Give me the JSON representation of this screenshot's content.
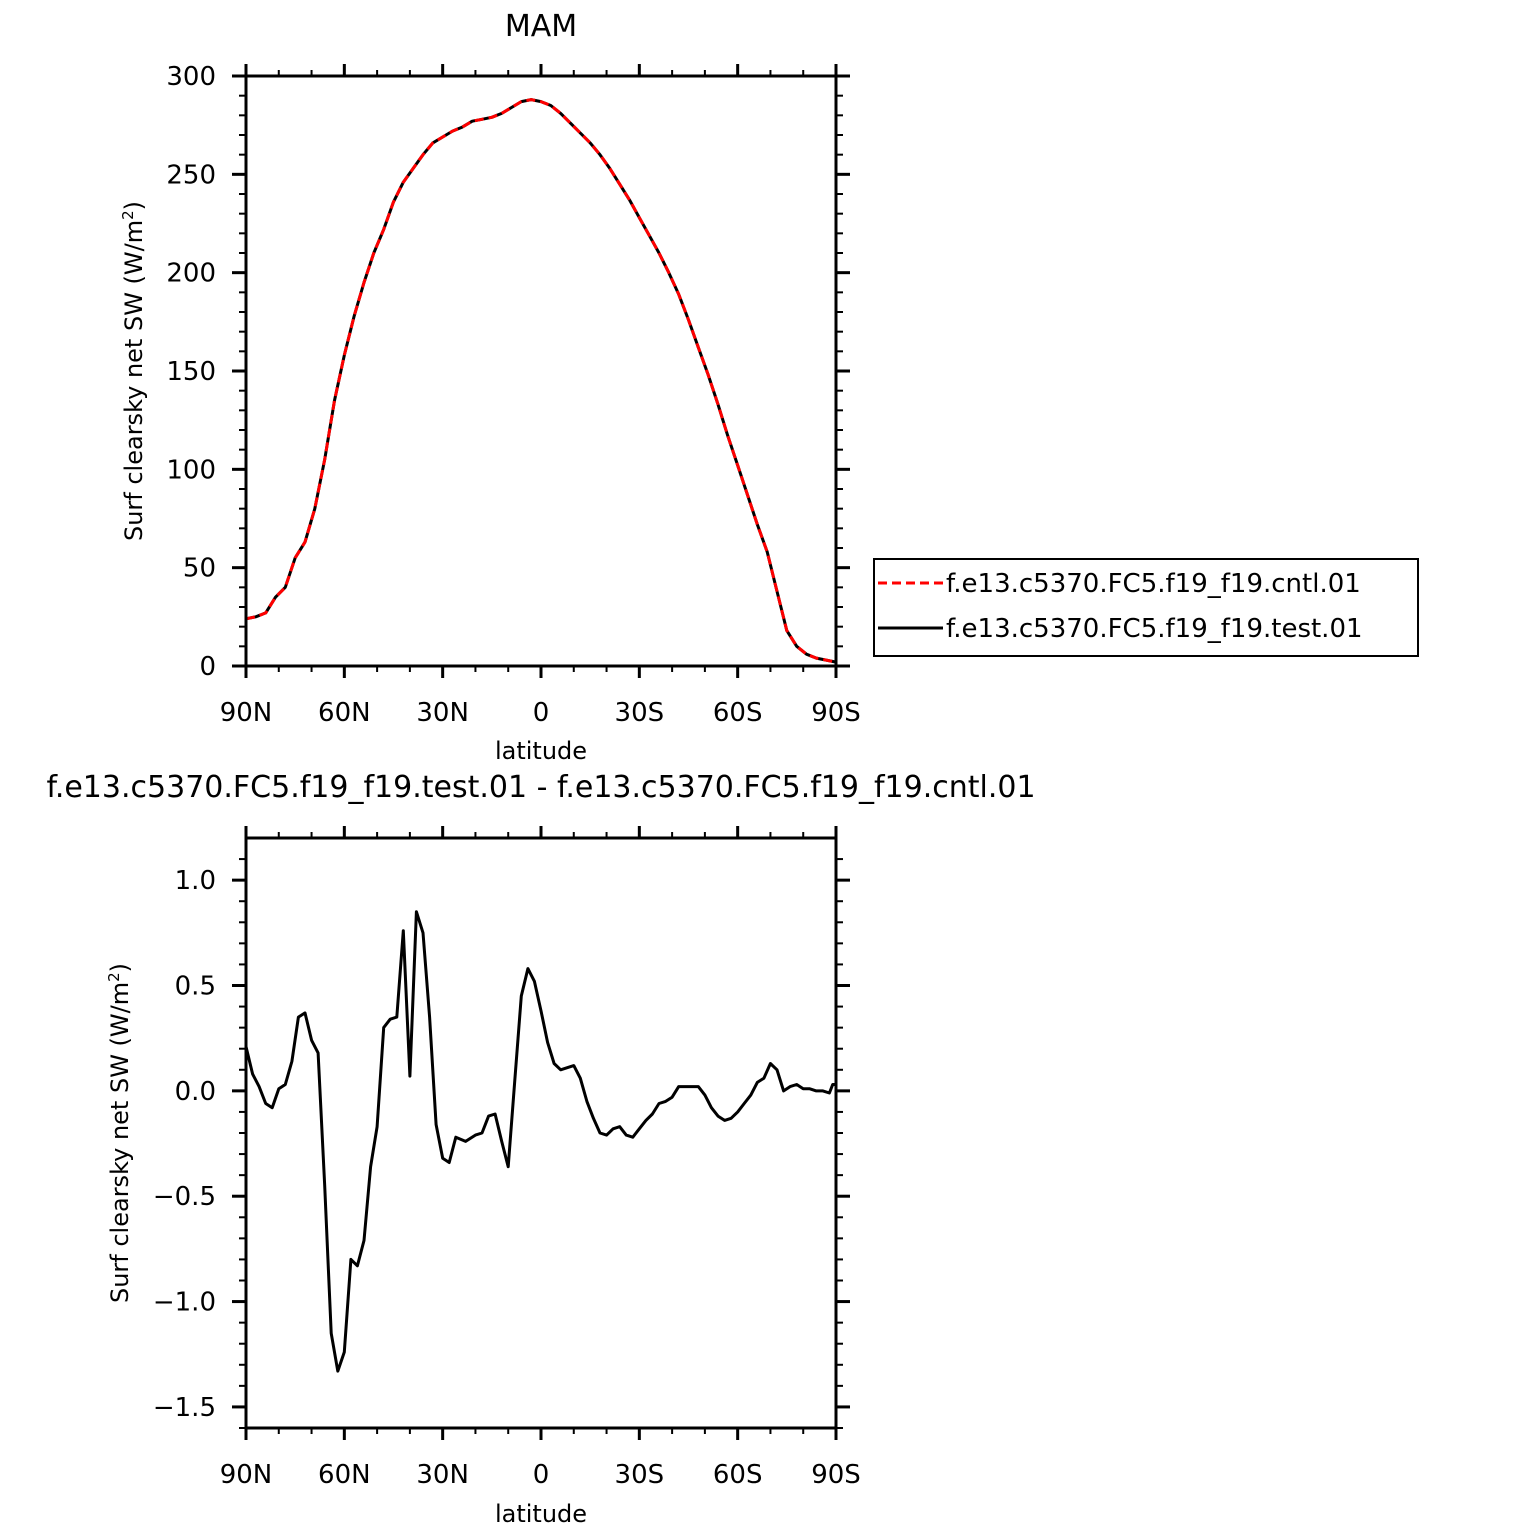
{
  "chart_data": [
    {
      "type": "line",
      "title": "MAM",
      "xlabel": "latitude",
      "ylabel_prefix": "Surf clearsky net SW (W/m",
      "ylabel_sup": "2",
      "ylabel_suffix": ")",
      "xlim": [
        90,
        -90
      ],
      "ylim": [
        0,
        300
      ],
      "x_ticks": [
        90,
        60,
        30,
        0,
        -30,
        -60,
        -90
      ],
      "x_tick_labels": [
        "90N",
        "60N",
        "30N",
        "0",
        "30S",
        "60S",
        "90S"
      ],
      "y_ticks": [
        0,
        50,
        100,
        150,
        200,
        250,
        300
      ],
      "y_tick_labels": [
        "0",
        "50",
        "100",
        "150",
        "200",
        "250",
        "300"
      ],
      "grid": false,
      "legend_position": "right",
      "series": [
        {
          "name": "f.e13.c5370.FC5.f19_f19.cntl.01",
          "color": "#ff0000",
          "dash": true,
          "points": [
            [
              90,
              24
            ],
            [
              87,
              25
            ],
            [
              84,
              27
            ],
            [
              81,
              35
            ],
            [
              78,
              40
            ],
            [
              75,
              55
            ],
            [
              72,
              63
            ],
            [
              69,
              80
            ],
            [
              66,
              105
            ],
            [
              63,
              135
            ],
            [
              60,
              158
            ],
            [
              57,
              178
            ],
            [
              54,
              195
            ],
            [
              51,
              210
            ],
            [
              48,
              222
            ],
            [
              45,
              236
            ],
            [
              42,
              246
            ],
            [
              39,
              253
            ],
            [
              36,
              260
            ],
            [
              33,
              266
            ],
            [
              30,
              269
            ],
            [
              27,
              272
            ],
            [
              24,
              274
            ],
            [
              21,
              277
            ],
            [
              18,
              278
            ],
            [
              15,
              279
            ],
            [
              12,
              281
            ],
            [
              9,
              284
            ],
            [
              6,
              287
            ],
            [
              3,
              288
            ],
            [
              0,
              287
            ],
            [
              -3,
              285
            ],
            [
              -6,
              281
            ],
            [
              -9,
              276
            ],
            [
              -12,
              271
            ],
            [
              -15,
              266
            ],
            [
              -18,
              260
            ],
            [
              -21,
              253
            ],
            [
              -24,
              245
            ],
            [
              -27,
              237
            ],
            [
              -30,
              228
            ],
            [
              -33,
              219
            ],
            [
              -36,
              210
            ],
            [
              -39,
              200
            ],
            [
              -42,
              189
            ],
            [
              -45,
              176
            ],
            [
              -48,
              162
            ],
            [
              -51,
              148
            ],
            [
              -54,
              133
            ],
            [
              -57,
              117
            ],
            [
              -60,
              102
            ],
            [
              -63,
              87
            ],
            [
              -66,
              72
            ],
            [
              -69,
              58
            ],
            [
              -72,
              38
            ],
            [
              -75,
              18
            ],
            [
              -78,
              10
            ],
            [
              -81,
              6
            ],
            [
              -84,
              4
            ],
            [
              -87,
              3
            ],
            [
              -90,
              2
            ]
          ]
        },
        {
          "name": "f.e13.c5370.FC5.f19_f19.test.01",
          "color": "#000000",
          "dash": false,
          "points": [
            [
              90,
              24
            ],
            [
              87,
              25
            ],
            [
              84,
              27
            ],
            [
              81,
              35
            ],
            [
              78,
              40
            ],
            [
              75,
              55
            ],
            [
              72,
              63
            ],
            [
              69,
              80
            ],
            [
              66,
              105
            ],
            [
              63,
              135
            ],
            [
              60,
              158
            ],
            [
              57,
              178
            ],
            [
              54,
              195
            ],
            [
              51,
              210
            ],
            [
              48,
              222
            ],
            [
              45,
              236
            ],
            [
              42,
              246
            ],
            [
              39,
              253
            ],
            [
              36,
              260
            ],
            [
              33,
              266
            ],
            [
              30,
              269
            ],
            [
              27,
              272
            ],
            [
              24,
              274
            ],
            [
              21,
              277
            ],
            [
              18,
              278
            ],
            [
              15,
              279
            ],
            [
              12,
              281
            ],
            [
              9,
              284
            ],
            [
              6,
              287
            ],
            [
              3,
              288
            ],
            [
              0,
              287
            ],
            [
              -3,
              285
            ],
            [
              -6,
              281
            ],
            [
              -9,
              276
            ],
            [
              -12,
              271
            ],
            [
              -15,
              266
            ],
            [
              -18,
              260
            ],
            [
              -21,
              253
            ],
            [
              -24,
              245
            ],
            [
              -27,
              237
            ],
            [
              -30,
              228
            ],
            [
              -33,
              219
            ],
            [
              -36,
              210
            ],
            [
              -39,
              200
            ],
            [
              -42,
              189
            ],
            [
              -45,
              176
            ],
            [
              -48,
              162
            ],
            [
              -51,
              148
            ],
            [
              -54,
              133
            ],
            [
              -57,
              117
            ],
            [
              -60,
              102
            ],
            [
              -63,
              87
            ],
            [
              -66,
              72
            ],
            [
              -69,
              58
            ],
            [
              -72,
              38
            ],
            [
              -75,
              18
            ],
            [
              -78,
              10
            ],
            [
              -81,
              6
            ],
            [
              -84,
              4
            ],
            [
              -87,
              3
            ],
            [
              -90,
              2
            ]
          ]
        }
      ]
    },
    {
      "type": "line",
      "title": "f.e13.c5370.FC5.f19_f19.test.01 - f.e13.c5370.FC5.f19_f19.cntl.01",
      "xlabel": "latitude",
      "ylabel_prefix": "Surf clearsky net SW (W/m",
      "ylabel_sup": "2",
      "ylabel_suffix": ")",
      "xlim": [
        90,
        -90
      ],
      "ylim": [
        -1.6,
        1.2
      ],
      "x_ticks": [
        90,
        60,
        30,
        0,
        -30,
        -60,
        -90
      ],
      "x_tick_labels": [
        "90N",
        "60N",
        "30N",
        "0",
        "30S",
        "60S",
        "90S"
      ],
      "y_ticks": [
        1.0,
        0.5,
        0.0,
        -0.5,
        -1.0,
        -1.5
      ],
      "y_tick_labels": [
        "1.0",
        "0.5",
        "0.0",
        "−0.5",
        "−1.0",
        "−1.5"
      ],
      "grid": false,
      "series": [
        {
          "name": "",
          "color": "#000000",
          "dash": false,
          "points": [
            [
              90,
              0.21
            ],
            [
              88,
              0.08
            ],
            [
              86,
              0.02
            ],
            [
              84,
              -0.06
            ],
            [
              82,
              -0.08
            ],
            [
              80,
              0.01
            ],
            [
              78,
              0.03
            ],
            [
              76,
              0.14
            ],
            [
              74,
              0.35
            ],
            [
              72,
              0.37
            ],
            [
              70,
              0.24
            ],
            [
              68,
              0.18
            ],
            [
              66,
              -0.45
            ],
            [
              64,
              -1.15
            ],
            [
              62,
              -1.33
            ],
            [
              60,
              -1.24
            ],
            [
              58,
              -0.8
            ],
            [
              56,
              -0.83
            ],
            [
              54,
              -0.71
            ],
            [
              52,
              -0.36
            ],
            [
              50,
              -0.17
            ],
            [
              48,
              0.3
            ],
            [
              46,
              0.34
            ],
            [
              44,
              0.35
            ],
            [
              42,
              0.76
            ],
            [
              40,
              0.07
            ],
            [
              38,
              0.85
            ],
            [
              36,
              0.75
            ],
            [
              34,
              0.35
            ],
            [
              32,
              -0.16
            ],
            [
              30,
              -0.32
            ],
            [
              28,
              -0.34
            ],
            [
              26,
              -0.22
            ],
            [
              23,
              -0.24
            ],
            [
              20,
              -0.21
            ],
            [
              18,
              -0.2
            ],
            [
              16,
              -0.12
            ],
            [
              14,
              -0.11
            ],
            [
              12,
              -0.24
            ],
            [
              10,
              -0.36
            ],
            [
              8,
              0.05
            ],
            [
              6,
              0.45
            ],
            [
              4,
              0.58
            ],
            [
              2,
              0.52
            ],
            [
              0,
              0.38
            ],
            [
              -2,
              0.23
            ],
            [
              -4,
              0.13
            ],
            [
              -6,
              0.1
            ],
            [
              -8,
              0.11
            ],
            [
              -10,
              0.12
            ],
            [
              -12,
              0.06
            ],
            [
              -14,
              -0.05
            ],
            [
              -16,
              -0.13
            ],
            [
              -18,
              -0.2
            ],
            [
              -20,
              -0.21
            ],
            [
              -22,
              -0.18
            ],
            [
              -24,
              -0.17
            ],
            [
              -26,
              -0.21
            ],
            [
              -28,
              -0.22
            ],
            [
              -30,
              -0.18
            ],
            [
              -32,
              -0.14
            ],
            [
              -34,
              -0.11
            ],
            [
              -36,
              -0.06
            ],
            [
              -38,
              -0.05
            ],
            [
              -40,
              -0.03
            ],
            [
              -42,
              0.02
            ],
            [
              -44,
              0.02
            ],
            [
              -46,
              0.02
            ],
            [
              -48,
              0.02
            ],
            [
              -50,
              -0.02
            ],
            [
              -52,
              -0.08
            ],
            [
              -54,
              -0.12
            ],
            [
              -56,
              -0.14
            ],
            [
              -58,
              -0.13
            ],
            [
              -60,
              -0.1
            ],
            [
              -62,
              -0.06
            ],
            [
              -64,
              -0.02
            ],
            [
              -66,
              0.04
            ],
            [
              -68,
              0.06
            ],
            [
              -70,
              0.13
            ],
            [
              -72,
              0.1
            ],
            [
              -74,
              0.0
            ],
            [
              -76,
              0.02
            ],
            [
              -78,
              0.03
            ],
            [
              -80,
              0.01
            ],
            [
              -82,
              0.01
            ],
            [
              -84,
              0.0
            ],
            [
              -86,
              0.0
            ],
            [
              -88,
              -0.01
            ],
            [
              -89,
              0.03
            ],
            [
              -90,
              0.03
            ]
          ]
        }
      ]
    }
  ]
}
